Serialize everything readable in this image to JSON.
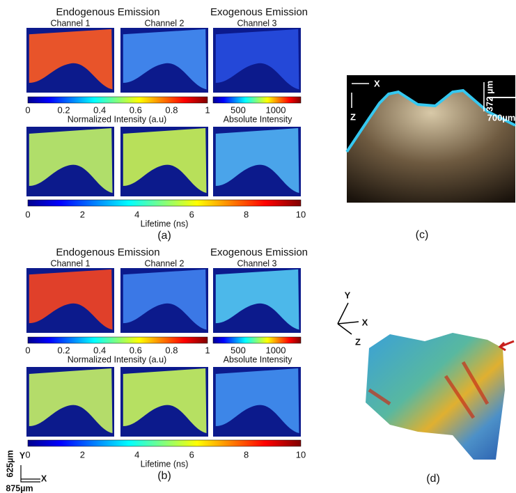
{
  "panels": [
    {
      "label": "(a)",
      "endogenous_header": "Endogenous Emission",
      "exogenous_header": "Exogenous Emission",
      "channels": [
        "Channel 1",
        "Channel 2",
        "Channel 3"
      ],
      "intensity_ticks": [
        0,
        0.2,
        0.4,
        0.6,
        0.8,
        1
      ],
      "absolute_ticks": [
        500,
        1000
      ],
      "normalized_label": "Normalized Intensity (a.u)",
      "absolute_label": "Absolute Intensity",
      "lifetime_ticks": [
        0,
        2,
        4,
        6,
        8,
        10
      ],
      "lifetime_label": "Lifetime (ns)"
    },
    {
      "label": "(b)",
      "endogenous_header": "Endogenous Emission",
      "exogenous_header": "Exogenous Emission",
      "channels": [
        "Channel 1",
        "Channel 2",
        "Channel 3"
      ],
      "intensity_ticks": [
        0,
        0.2,
        0.4,
        0.6,
        0.8,
        1
      ],
      "absolute_ticks": [
        500,
        1000
      ],
      "normalized_label": "Normalized Intensity (a.u)",
      "absolute_label": "Absolute Intensity",
      "lifetime_ticks": [
        0,
        2,
        4,
        6,
        8,
        10
      ],
      "lifetime_label": "Lifetime (ns)"
    }
  ],
  "scale": {
    "y": "Y",
    "y_len": "625µm",
    "x": "X",
    "x_len": "875µm"
  },
  "oct": {
    "label": "(c)",
    "x": "X",
    "z": "Z",
    "depth": "372 µm",
    "width": "700µm"
  },
  "render": {
    "label": "(d)",
    "y": "Y",
    "x": "X",
    "z": "Z"
  }
}
